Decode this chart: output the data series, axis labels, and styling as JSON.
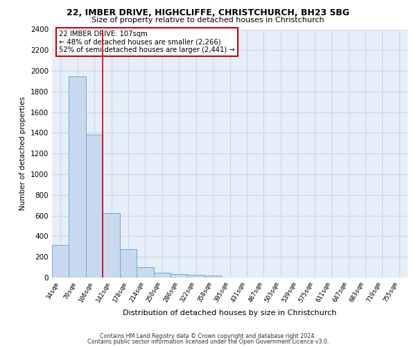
{
  "title1": "22, IMBER DRIVE, HIGHCLIFFE, CHRISTCHURCH, BH23 5BG",
  "title2": "Size of property relative to detached houses in Christchurch",
  "xlabel": "Distribution of detached houses by size in Christchurch",
  "ylabel": "Number of detached properties",
  "categories": [
    "34sqm",
    "70sqm",
    "106sqm",
    "142sqm",
    "178sqm",
    "214sqm",
    "250sqm",
    "286sqm",
    "322sqm",
    "358sqm",
    "395sqm",
    "431sqm",
    "467sqm",
    "503sqm",
    "539sqm",
    "575sqm",
    "611sqm",
    "647sqm",
    "683sqm",
    "719sqm",
    "755sqm"
  ],
  "values": [
    315,
    1950,
    1385,
    625,
    275,
    100,
    50,
    35,
    25,
    20,
    0,
    0,
    0,
    0,
    0,
    0,
    0,
    0,
    0,
    0,
    0
  ],
  "bar_color": "#c8d9ef",
  "bar_edge_color": "#6aaad4",
  "grid_color": "#c8d4e8",
  "background_color": "#e8eef8",
  "vline_color": "#cc0000",
  "annotation_text": "22 IMBER DRIVE: 107sqm\n← 48% of detached houses are smaller (2,266)\n52% of semi-detached houses are larger (2,441) →",
  "annotation_box_color": "white",
  "annotation_box_edge_color": "#cc0000",
  "ylim": [
    0,
    2400
  ],
  "yticks": [
    0,
    200,
    400,
    600,
    800,
    1000,
    1200,
    1400,
    1600,
    1800,
    2000,
    2200,
    2400
  ],
  "footer1": "Contains HM Land Registry data © Crown copyright and database right 2024.",
  "footer2": "Contains public sector information licensed under the Open Government Licence v3.0."
}
